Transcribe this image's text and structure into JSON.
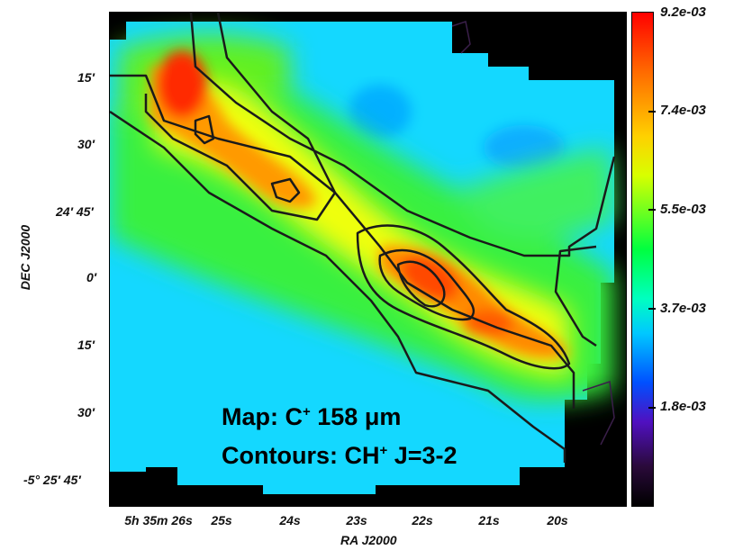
{
  "map": {
    "legend_line1_prefix": "Map: C",
    "legend_line1_sup": "+",
    "legend_line1_suffix": " 158 μm",
    "legend_line2_prefix": "Contours: CH",
    "legend_line2_sup": "+",
    "legend_line2_suffix": " J=3-2"
  },
  "axes": {
    "y_title": "DEC J2000",
    "x_title": "RA J2000",
    "y_ticks": [
      "15′",
      "30′",
      "24′ 45′",
      "0′",
      "15′",
      "30′",
      "-5° 25′ 45′"
    ],
    "x_ticks": [
      "5h 35m 26s",
      "25s",
      "24s",
      "23s",
      "22s",
      "21s",
      "20s"
    ]
  },
  "colorbar": {
    "labels": [
      "9.2e-03",
      "7.4e-03",
      "5.5e-03",
      "3.7e-03",
      "1.8e-03"
    ]
  },
  "colors": {
    "peak": "#ff1a00",
    "background": "#00d8ff",
    "contour": "#1a1a1a"
  }
}
